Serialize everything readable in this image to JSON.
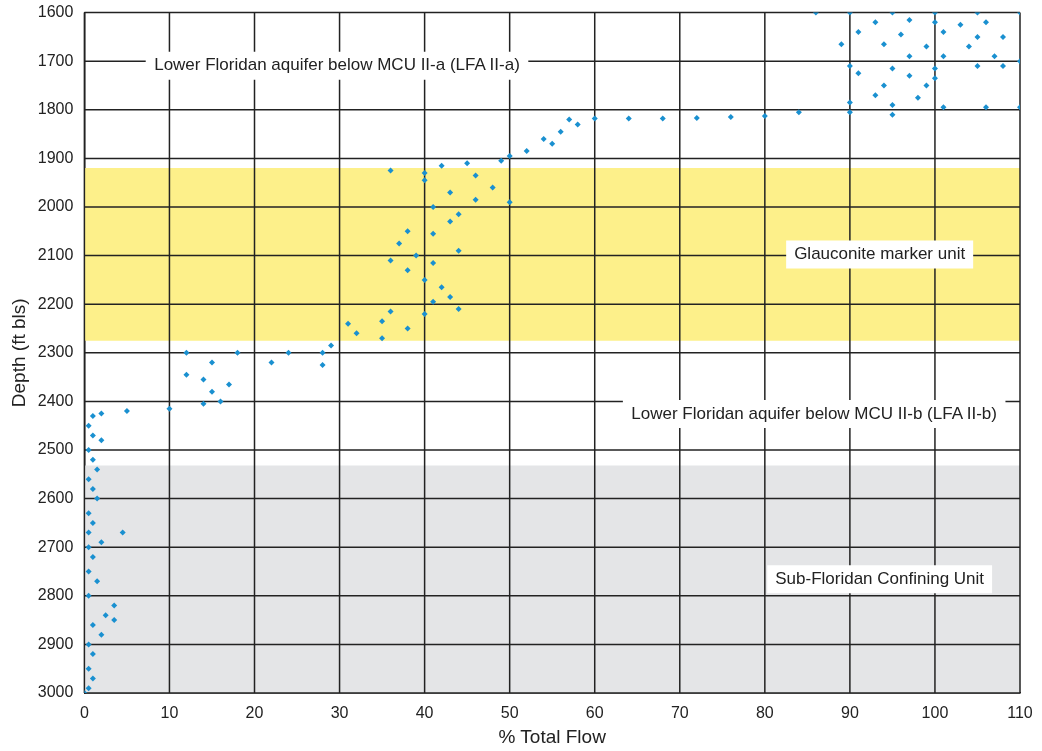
{
  "chart_data": {
    "type": "scatter",
    "xlabel": "% Total Flow",
    "ylabel": "Depth (ft bls)",
    "xlim": [
      0,
      110
    ],
    "xticks": [
      0,
      10,
      20,
      30,
      40,
      50,
      60,
      70,
      80,
      90,
      100,
      110
    ],
    "ylim": [
      3000,
      1600
    ],
    "yticks": [
      1600,
      1700,
      1800,
      1900,
      2000,
      2100,
      2200,
      2300,
      2400,
      2500,
      2600,
      2700,
      2800,
      2900,
      3000
    ],
    "grid": true,
    "legend": false,
    "marker": "diamond",
    "bands": [
      {
        "axis": "y",
        "from": 1920,
        "to": 2275,
        "label": "Glauconite marker unit",
        "color": "#fdf08a"
      },
      {
        "axis": "y",
        "from": 2532,
        "to": 3000,
        "label": "Sub-Floridan Confining Unit",
        "color": "#e4e5e7"
      }
    ],
    "annotations": [
      "Lower Floridan aquifer below MCU II-a (LFA II-a)",
      "Lower Floridan aquifer below MCU II-b (LFA II-b)"
    ],
    "series": [
      {
        "color": "#1a90d0",
        "x": [
          86,
          90,
          95,
          100,
          105,
          110,
          93,
          97,
          100,
          103,
          106,
          91,
          96,
          101,
          105,
          108,
          89,
          94,
          99,
          104,
          97,
          101,
          107,
          110,
          90,
          95,
          100,
          105,
          108,
          91,
          97,
          100,
          94,
          99,
          93,
          98,
          90,
          95,
          101,
          106,
          110,
          84,
          90,
          95,
          80,
          76,
          72,
          68,
          64,
          60,
          57,
          58,
          56,
          54,
          55,
          52,
          50,
          49,
          45,
          42,
          36,
          40,
          46,
          40,
          48,
          43,
          46,
          50,
          41,
          44,
          43,
          38,
          41,
          37,
          44,
          39,
          36,
          41,
          38,
          40,
          42,
          43,
          41,
          44,
          36,
          40,
          31,
          35,
          38,
          32,
          35,
          29,
          24,
          28,
          12,
          18,
          15,
          22,
          28,
          12,
          14,
          17,
          15,
          16,
          14,
          10,
          5,
          2,
          1,
          0.5,
          1,
          2,
          0.5,
          1,
          1.5,
          0.5,
          1,
          1.5,
          0.5,
          1,
          0.5,
          4.5,
          2,
          0.5,
          1,
          0.5,
          1.5,
          0.5,
          3.5,
          2.5,
          3.5,
          1,
          2,
          0.5,
          1,
          0.5,
          1,
          0.5,
          0
        ],
        "values": [
          1600,
          1600,
          1600,
          1600,
          1600,
          1600,
          1620,
          1615,
          1620,
          1625,
          1620,
          1640,
          1645,
          1640,
          1650,
          1650,
          1665,
          1665,
          1670,
          1670,
          1690,
          1690,
          1690,
          1700,
          1710,
          1715,
          1715,
          1710,
          1710,
          1725,
          1730,
          1735,
          1750,
          1750,
          1770,
          1775,
          1785,
          1790,
          1795,
          1795,
          1795,
          1805,
          1805,
          1810,
          1813,
          1815,
          1817,
          1818,
          1818,
          1818,
          1820,
          1830,
          1845,
          1860,
          1870,
          1885,
          1895,
          1905,
          1910,
          1915,
          1925,
          1930,
          1935,
          1945,
          1960,
          1970,
          1985,
          1990,
          2000,
          2015,
          2030,
          2050,
          2055,
          2075,
          2090,
          2100,
          2110,
          2115,
          2130,
          2150,
          2165,
          2185,
          2195,
          2210,
          2215,
          2220,
          2240,
          2235,
          2250,
          2260,
          2270,
          2285,
          2300,
          2300,
          2300,
          2300,
          2320,
          2320,
          2325,
          2345,
          2355,
          2365,
          2380,
          2400,
          2405,
          2415,
          2420,
          2425,
          2430,
          2450,
          2470,
          2480,
          2500,
          2520,
          2540,
          2560,
          2580,
          2600,
          2630,
          2650,
          2670,
          2670,
          2690,
          2700,
          2720,
          2750,
          2770,
          2800,
          2820,
          2840,
          2850,
          2860,
          2880,
          2900,
          2920,
          2950,
          2970,
          2990,
          3000
        ]
      }
    ]
  }
}
